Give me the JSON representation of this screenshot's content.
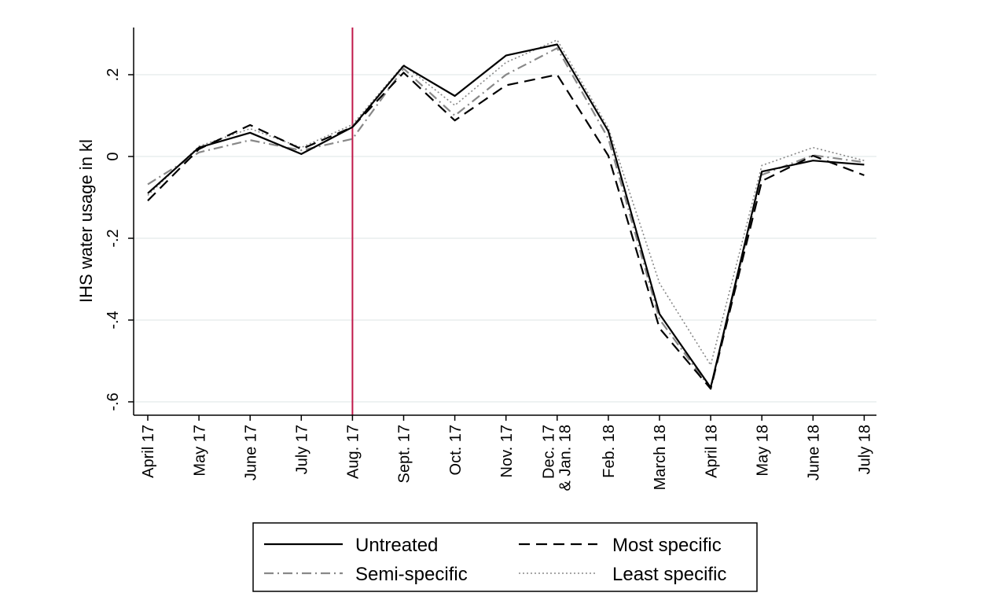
{
  "chart_data": {
    "type": "line",
    "ylabel": "IHS water usage in kl",
    "xlabel": "",
    "categories": [
      "April 17",
      "May 17",
      "June 17",
      "July 17",
      "Aug. 17",
      "Sept. 17",
      "Oct. 17",
      "Nov. 17",
      "Dec. 17\n& Jan. 18",
      "Feb. 18",
      "March 18",
      "April 18",
      "May 18",
      "June 18",
      "July 18"
    ],
    "yticks": [
      {
        "value": 0.2,
        "label": ".2"
      },
      {
        "value": 0,
        "label": "0"
      },
      {
        "value": -0.2,
        "label": "-.2"
      },
      {
        "value": -0.4,
        "label": "-.4"
      },
      {
        "value": -0.6,
        "label": "-.6"
      }
    ],
    "ylim": [
      -0.63,
      0.31
    ],
    "grid": true,
    "vertical_marker": {
      "category": "Aug. 17",
      "color": "#c0184a"
    },
    "series": [
      {
        "name": "Untreated",
        "style": "solid",
        "color": "#000000",
        "values": [
          -0.09,
          0.022,
          0.058,
          0.006,
          0.072,
          0.222,
          0.148,
          0.247,
          0.274,
          0.062,
          -0.385,
          -0.565,
          -0.037,
          -0.01,
          -0.02
        ]
      },
      {
        "name": "Most specific",
        "style": "dash",
        "color": "#000000",
        "values": [
          -0.108,
          0.018,
          0.077,
          0.018,
          0.072,
          0.205,
          0.088,
          0.174,
          0.2,
          0.002,
          -0.42,
          -0.568,
          -0.06,
          0.002,
          -0.046
        ]
      },
      {
        "name": "Semi-specific",
        "style": "dashdot",
        "color": "#888888",
        "values": [
          -0.068,
          0.01,
          0.04,
          0.015,
          0.043,
          0.215,
          0.1,
          0.2,
          0.265,
          0.044,
          -0.398,
          -0.568,
          -0.045,
          0.003,
          -0.014
        ]
      },
      {
        "name": "Least specific",
        "style": "dot",
        "color": "#888888",
        "values": [
          -0.095,
          0.025,
          0.068,
          0.022,
          0.078,
          0.224,
          0.125,
          0.23,
          0.285,
          0.07,
          -0.31,
          -0.51,
          -0.022,
          0.022,
          -0.01
        ]
      }
    ],
    "legend": {
      "placement": "bottom",
      "order": [
        "Untreated",
        "Most specific",
        "Semi-specific",
        "Least specific"
      ]
    }
  }
}
